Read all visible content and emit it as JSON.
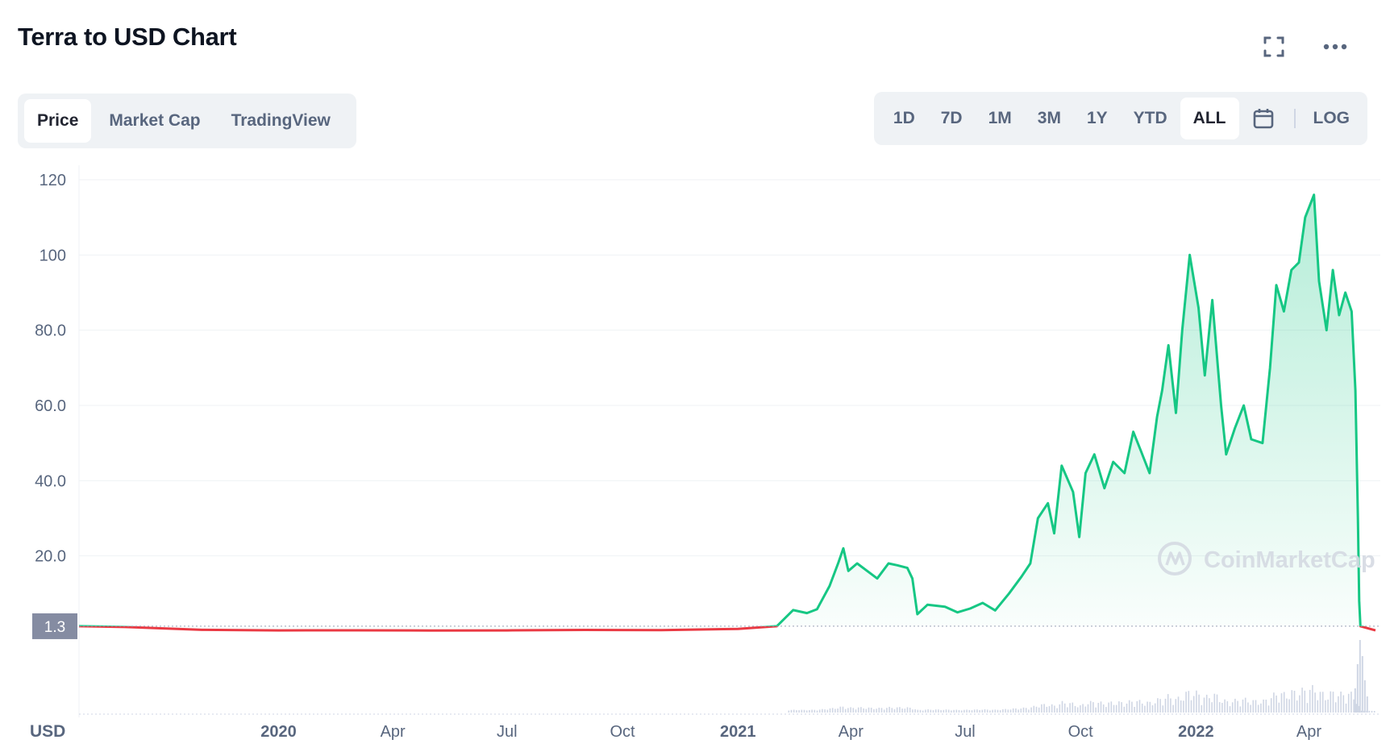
{
  "header": {
    "title": "Terra to USD Chart"
  },
  "icons": {
    "fullscreen": "fullscreen-icon",
    "more": "more-icon",
    "calendar": "calendar-icon",
    "watermark_logo": "coinmarketcap-logo-icon"
  },
  "tabs": [
    {
      "label": "Price",
      "active": true
    },
    {
      "label": "Market Cap",
      "active": false
    },
    {
      "label": "TradingView",
      "active": false
    }
  ],
  "ranges": [
    {
      "label": "1D",
      "active": false
    },
    {
      "label": "7D",
      "active": false
    },
    {
      "label": "1M",
      "active": false
    },
    {
      "label": "3M",
      "active": false
    },
    {
      "label": "1Y",
      "active": false
    },
    {
      "label": "YTD",
      "active": false
    },
    {
      "label": "ALL",
      "active": true
    }
  ],
  "log_label": "LOG",
  "watermark": "CoinMarketCap",
  "colors": {
    "up": "#16c784",
    "down": "#ea3943",
    "label_bg": "#858ca2",
    "text": "#58667e"
  },
  "chart_data": {
    "type": "area",
    "title": "Terra to USD Chart",
    "unit_label": "USD",
    "current_price_label": "1.3",
    "ylim": [
      0,
      120
    ],
    "y_ticks": [
      {
        "value": 120,
        "label": "120"
      },
      {
        "value": 100,
        "label": "100"
      },
      {
        "value": 80,
        "label": "80.0"
      },
      {
        "value": 60,
        "label": "60.0"
      },
      {
        "value": 40,
        "label": "40.0"
      },
      {
        "value": 20,
        "label": "20.0"
      }
    ],
    "x_ticks": [
      {
        "date": "2020-01-01",
        "label": "2020",
        "bold": true
      },
      {
        "date": "2020-04-01",
        "label": "Apr",
        "bold": false
      },
      {
        "date": "2020-07-01",
        "label": "Jul",
        "bold": false
      },
      {
        "date": "2020-10-01",
        "label": "Oct",
        "bold": false
      },
      {
        "date": "2021-01-01",
        "label": "2021",
        "bold": true
      },
      {
        "date": "2021-04-01",
        "label": "Apr",
        "bold": false
      },
      {
        "date": "2021-07-01",
        "label": "Jul",
        "bold": false
      },
      {
        "date": "2021-10-01",
        "label": "Oct",
        "bold": false
      },
      {
        "date": "2022-01-01",
        "label": "2022",
        "bold": true
      },
      {
        "date": "2022-04-01",
        "label": "Apr",
        "bold": false
      }
    ],
    "series": [
      {
        "points": [
          [
            "2019-07-26",
            1.3
          ],
          [
            "2019-09-01",
            1.1
          ],
          [
            "2019-11-01",
            0.35
          ],
          [
            "2020-01-01",
            0.2
          ],
          [
            "2020-03-01",
            0.22
          ],
          [
            "2020-05-01",
            0.18
          ],
          [
            "2020-07-01",
            0.2
          ],
          [
            "2020-09-01",
            0.32
          ],
          [
            "2020-11-01",
            0.28
          ],
          [
            "2021-01-01",
            0.6
          ],
          [
            "2021-02-01",
            1.3
          ],
          [
            "2021-02-14",
            5.6
          ],
          [
            "2021-02-25",
            4.8
          ],
          [
            "2021-03-05",
            5.8
          ],
          [
            "2021-03-15",
            12.0
          ],
          [
            "2021-03-22",
            18.2
          ],
          [
            "2021-03-26",
            22.0
          ],
          [
            "2021-03-30",
            16.0
          ],
          [
            "2021-04-06",
            18.0
          ],
          [
            "2021-04-16",
            15.5
          ],
          [
            "2021-04-22",
            14.0
          ],
          [
            "2021-05-01",
            18.0
          ],
          [
            "2021-05-08",
            17.5
          ],
          [
            "2021-05-16",
            16.8
          ],
          [
            "2021-05-20",
            14.0
          ],
          [
            "2021-05-24",
            4.5
          ],
          [
            "2021-06-01",
            7.0
          ],
          [
            "2021-06-15",
            6.5
          ],
          [
            "2021-06-25",
            5.0
          ],
          [
            "2021-07-05",
            6.0
          ],
          [
            "2021-07-15",
            7.5
          ],
          [
            "2021-07-25",
            5.5
          ],
          [
            "2021-08-05",
            10.0
          ],
          [
            "2021-08-15",
            14.5
          ],
          [
            "2021-08-22",
            18.0
          ],
          [
            "2021-08-28",
            30.0
          ],
          [
            "2021-09-05",
            34.0
          ],
          [
            "2021-09-10",
            26.0
          ],
          [
            "2021-09-16",
            44.0
          ],
          [
            "2021-09-25",
            37.0
          ],
          [
            "2021-09-30",
            25.0
          ],
          [
            "2021-10-05",
            42.0
          ],
          [
            "2021-10-12",
            47.0
          ],
          [
            "2021-10-20",
            38.0
          ],
          [
            "2021-10-27",
            45.0
          ],
          [
            "2021-11-05",
            42.0
          ],
          [
            "2021-11-12",
            53.0
          ],
          [
            "2021-11-18",
            48.0
          ],
          [
            "2021-11-25",
            42.0
          ],
          [
            "2021-12-01",
            57.0
          ],
          [
            "2021-12-05",
            64.0
          ],
          [
            "2021-12-10",
            76.0
          ],
          [
            "2021-12-16",
            58.0
          ],
          [
            "2021-12-21",
            80.0
          ],
          [
            "2021-12-27",
            100.0
          ],
          [
            "2022-01-03",
            86.0
          ],
          [
            "2022-01-08",
            68.0
          ],
          [
            "2022-01-14",
            88.0
          ],
          [
            "2022-01-21",
            60.0
          ],
          [
            "2022-01-25",
            47.0
          ],
          [
            "2022-02-01",
            54.0
          ],
          [
            "2022-02-08",
            60.0
          ],
          [
            "2022-02-14",
            51.0
          ],
          [
            "2022-02-23",
            50.0
          ],
          [
            "2022-03-01",
            70.0
          ],
          [
            "2022-03-06",
            92.0
          ],
          [
            "2022-03-12",
            85.0
          ],
          [
            "2022-03-18",
            96.0
          ],
          [
            "2022-03-24",
            98.0
          ],
          [
            "2022-03-29",
            110.0
          ],
          [
            "2022-04-05",
            116.0
          ],
          [
            "2022-04-09",
            93.0
          ],
          [
            "2022-04-15",
            80.0
          ],
          [
            "2022-04-20",
            96.0
          ],
          [
            "2022-04-25",
            84.0
          ],
          [
            "2022-04-30",
            90.0
          ],
          [
            "2022-05-05",
            85.0
          ],
          [
            "2022-05-08",
            64.0
          ],
          [
            "2022-05-10",
            30.0
          ],
          [
            "2022-05-11",
            8.0
          ],
          [
            "2022-05-12",
            1.3
          ],
          [
            "2022-05-24",
            0.2
          ]
        ]
      }
    ]
  }
}
